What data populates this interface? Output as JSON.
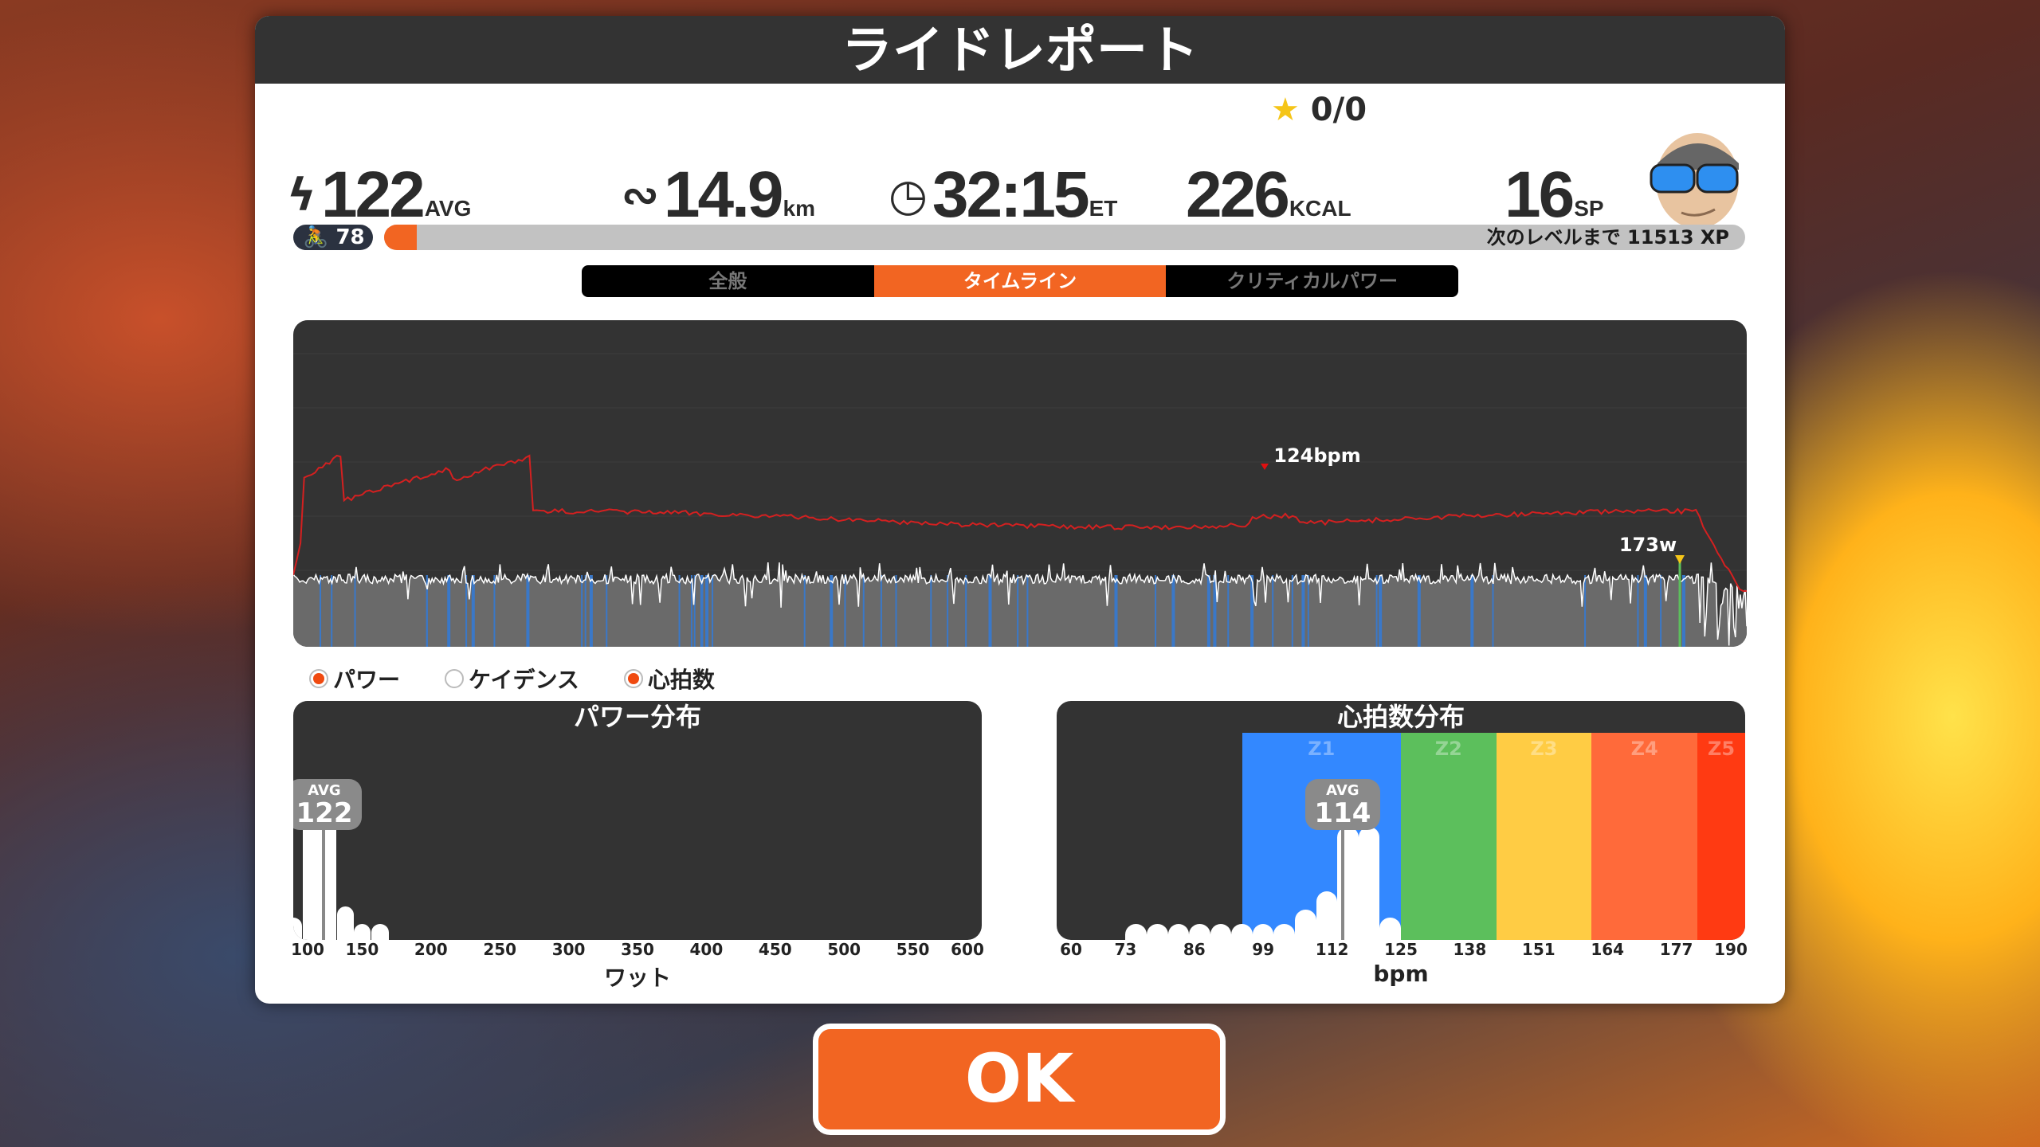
{
  "title": "ライドレポート",
  "stars": {
    "icon": "star-icon",
    "value": "0/0"
  },
  "stats": [
    {
      "icon": "lightning-icon",
      "value": "122",
      "unit": "AVG"
    },
    {
      "icon": "route-icon",
      "value": "14.9",
      "unit": "km"
    },
    {
      "icon": "clock-icon",
      "value": "32:15",
      "unit": "ET"
    },
    {
      "icon": "",
      "value": "226",
      "unit": "KCAL"
    },
    {
      "icon": "",
      "value": "16",
      "unit": "SP"
    }
  ],
  "level": {
    "icon": "cyclist-icon",
    "value": "78"
  },
  "xp": {
    "progress_pct": 2.4,
    "label": "次のレベルまで",
    "value": "11513 XP"
  },
  "tabs": [
    {
      "label": "全般",
      "active": false
    },
    {
      "label": "タイムライン",
      "active": true
    },
    {
      "label": "クリティカルパワー",
      "active": false
    }
  ],
  "timeline": {
    "hr_peak_label": "124bpm",
    "power_peak_label": "173w"
  },
  "toggles": [
    {
      "label": "パワー",
      "checked": true
    },
    {
      "label": "ケイデンス",
      "checked": false
    },
    {
      "label": "心拍数",
      "checked": true
    }
  ],
  "chart_data": [
    {
      "type": "bar",
      "title": "パワー分布",
      "xlabel": "ワット",
      "xlim": [
        100,
        600
      ],
      "ticks": [
        "100",
        "150",
        "200",
        "250",
        "300",
        "350",
        "400",
        "450",
        "500",
        "550",
        "600"
      ],
      "avg_label": "AVG",
      "avg": "122",
      "bins": [
        {
          "x": 100,
          "share": 0.15
        },
        {
          "x": 113,
          "share": 1.0
        },
        {
          "x": 125,
          "share": 1.0
        },
        {
          "x": 138,
          "share": 0.22
        },
        {
          "x": 150,
          "share": 0.1
        },
        {
          "x": 163,
          "share": 0.08
        }
      ]
    },
    {
      "type": "bar",
      "title": "心拍数分布",
      "xlabel": "bpm",
      "xlim": [
        60,
        190
      ],
      "ticks": [
        "60",
        "73",
        "86",
        "99",
        "112",
        "125",
        "138",
        "151",
        "164",
        "177",
        "190"
      ],
      "avg_label": "AVG",
      "avg": "114",
      "zones": [
        {
          "name": "Z1",
          "from": 95,
          "to": 125,
          "color": "#3388ff"
        },
        {
          "name": "Z2",
          "from": 125,
          "to": 143,
          "color": "#5cbf5c"
        },
        {
          "name": "Z3",
          "from": 143,
          "to": 161,
          "color": "#ffcc44"
        },
        {
          "name": "Z4",
          "from": 161,
          "to": 181,
          "color": "#ff6a3a"
        },
        {
          "name": "Z5",
          "from": 181,
          "to": 190,
          "color": "#ff3a12"
        }
      ],
      "bins": [
        {
          "x": 75,
          "share": 0.08
        },
        {
          "x": 79,
          "share": 0.08
        },
        {
          "x": 83,
          "share": 0.08
        },
        {
          "x": 87,
          "share": 0.08
        },
        {
          "x": 91,
          "share": 0.08
        },
        {
          "x": 95,
          "share": 0.09
        },
        {
          "x": 99,
          "share": 0.1
        },
        {
          "x": 103,
          "share": 0.1
        },
        {
          "x": 107,
          "share": 0.2
        },
        {
          "x": 111,
          "share": 0.32
        },
        {
          "x": 115,
          "share": 0.75
        },
        {
          "x": 119,
          "share": 0.75
        },
        {
          "x": 123,
          "share": 0.15
        }
      ]
    }
  ],
  "ok_label": "OK"
}
